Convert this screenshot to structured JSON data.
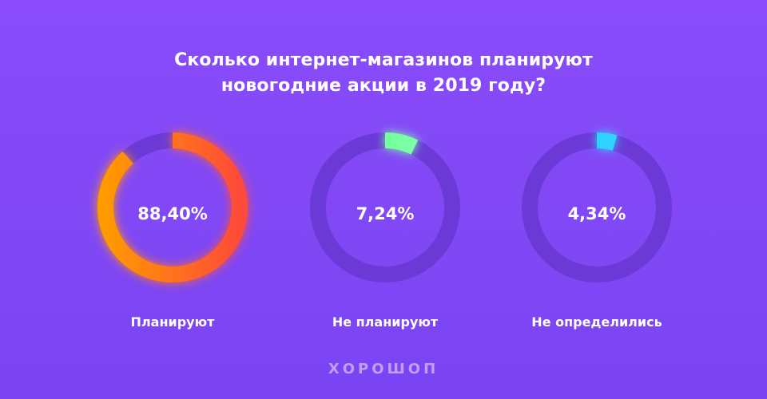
{
  "chart_data": {
    "type": "donut",
    "title": "Сколько интернет-магазинов планируют новогодние акции в 2019 году?",
    "title_lines": [
      "Сколько интернет-магазинов планируют",
      "новогодние акции в 2019 году?"
    ],
    "series": [
      {
        "name": "Планируют",
        "value": 88.4,
        "display": "88,40%",
        "gradient": [
          "#ff9a00",
          "#ff4b3a"
        ]
      },
      {
        "name": "Не планируют",
        "value": 7.24,
        "display": "7,24%",
        "gradient": [
          "#5cff8a",
          "#8affb0"
        ]
      },
      {
        "name": "Не определились",
        "value": 4.34,
        "display": "4,34%",
        "gradient": [
          "#18c8ff",
          "#42dcff"
        ]
      }
    ],
    "track_color": "#6b3ad6"
  },
  "footer": {
    "logo": "ХОРОШОП"
  }
}
